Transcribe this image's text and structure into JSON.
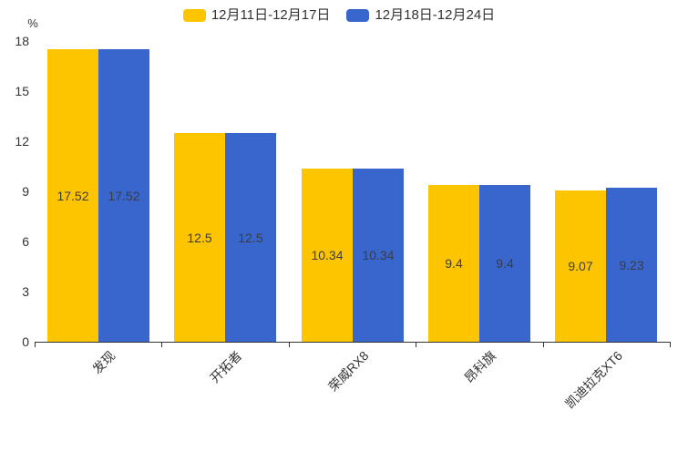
{
  "chart_data": {
    "type": "bar",
    "title": "",
    "xlabel": "",
    "ylabel": "%",
    "categories": [
      "发现",
      "开拓者",
      "荣威RX8",
      "昂科旗",
      "凯迪拉克XT6"
    ],
    "series": [
      {
        "name": "12月11日-12月17日",
        "color": "#FDC500",
        "values": [
          17.52,
          12.5,
          10.34,
          9.4,
          9.07
        ]
      },
      {
        "name": "12月18日-12月24日",
        "color": "#3866CC",
        "values": [
          17.52,
          12.5,
          10.34,
          9.4,
          9.23
        ]
      }
    ],
    "ylim": [
      0,
      18
    ],
    "yticks": [
      0,
      3,
      6,
      9,
      12,
      15,
      18
    ],
    "grid": false,
    "legend_position": "top",
    "value_labels": true,
    "axis_color": "#333333",
    "value_label_color": "#3c3c42"
  }
}
